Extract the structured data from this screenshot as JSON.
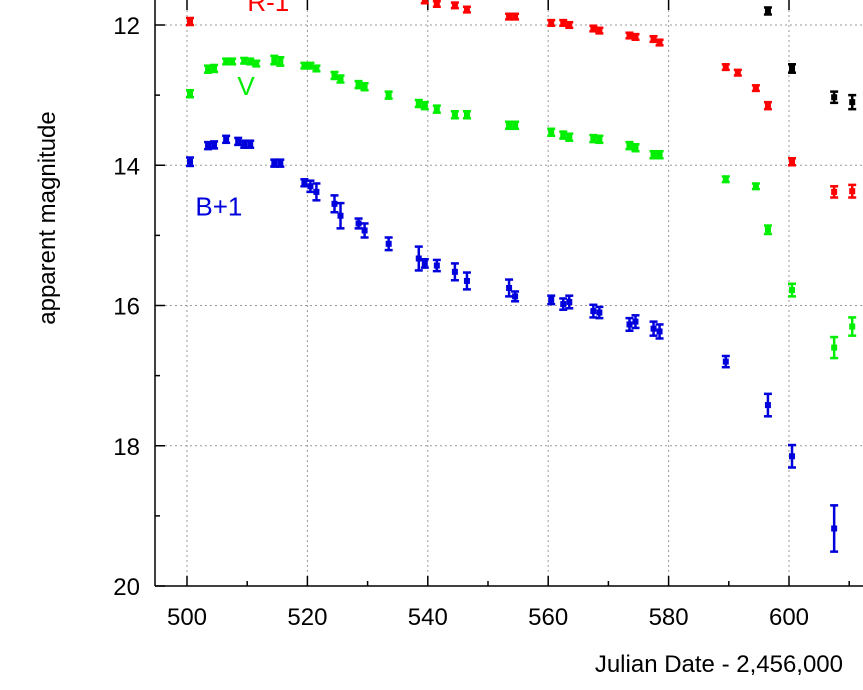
{
  "chart_data": {
    "type": "scatter",
    "title": "",
    "xlabel": "Julian Date - 2,456,000",
    "ylabel": "apparent magnitude",
    "xlim": [
      495,
      612
    ],
    "ylim": [
      20,
      11.7
    ],
    "y_inverted": true,
    "grid": true,
    "x_ticks": [
      "500",
      "520",
      "540",
      "560",
      "580",
      "600"
    ],
    "y_ticks": [
      "12",
      "14",
      "16",
      "18",
      "20"
    ],
    "series": [
      {
        "name": "R-1",
        "color": "#ff0000",
        "points": [
          {
            "x": 500.5,
            "y": 11.95,
            "e": 0.05
          },
          {
            "x": 539.5,
            "y": 11.65,
            "e": 0.04
          },
          {
            "x": 541.5,
            "y": 11.7,
            "e": 0.04
          },
          {
            "x": 544.5,
            "y": 11.72,
            "e": 0.04
          },
          {
            "x": 546.5,
            "y": 11.78,
            "e": 0.04
          },
          {
            "x": 553.5,
            "y": 11.88,
            "e": 0.04
          },
          {
            "x": 554.5,
            "y": 11.88,
            "e": 0.04
          },
          {
            "x": 560.5,
            "y": 11.97,
            "e": 0.04
          },
          {
            "x": 562.5,
            "y": 11.97,
            "e": 0.04
          },
          {
            "x": 563.5,
            "y": 12.0,
            "e": 0.04
          },
          {
            "x": 567.5,
            "y": 12.05,
            "e": 0.04
          },
          {
            "x": 568.5,
            "y": 12.08,
            "e": 0.04
          },
          {
            "x": 573.5,
            "y": 12.15,
            "e": 0.04
          },
          {
            "x": 574.5,
            "y": 12.17,
            "e": 0.04
          },
          {
            "x": 577.5,
            "y": 12.2,
            "e": 0.04
          },
          {
            "x": 578.5,
            "y": 12.25,
            "e": 0.04
          },
          {
            "x": 589.5,
            "y": 12.6,
            "e": 0.04
          },
          {
            "x": 591.5,
            "y": 12.68,
            "e": 0.04
          },
          {
            "x": 594.5,
            "y": 12.9,
            "e": 0.04
          },
          {
            "x": 596.5,
            "y": 13.15,
            "e": 0.05
          },
          {
            "x": 600.5,
            "y": 13.95,
            "e": 0.05
          },
          {
            "x": 607.5,
            "y": 14.38,
            "e": 0.08
          },
          {
            "x": 610.5,
            "y": 14.37,
            "e": 0.09
          }
        ]
      },
      {
        "name": "V",
        "color": "#00ee00",
        "points": [
          {
            "x": 500.5,
            "y": 12.98,
            "e": 0.05
          },
          {
            "x": 503.5,
            "y": 12.63,
            "e": 0.05
          },
          {
            "x": 504.5,
            "y": 12.62,
            "e": 0.05
          },
          {
            "x": 506.5,
            "y": 12.52,
            "e": 0.04
          },
          {
            "x": 507.5,
            "y": 12.52,
            "e": 0.04
          },
          {
            "x": 509.5,
            "y": 12.51,
            "e": 0.04
          },
          {
            "x": 510.5,
            "y": 12.52,
            "e": 0.04
          },
          {
            "x": 511.5,
            "y": 12.55,
            "e": 0.04
          },
          {
            "x": 514.5,
            "y": 12.5,
            "e": 0.06
          },
          {
            "x": 515.5,
            "y": 12.52,
            "e": 0.06
          },
          {
            "x": 519.5,
            "y": 12.58,
            "e": 0.04
          },
          {
            "x": 520.5,
            "y": 12.58,
            "e": 0.04
          },
          {
            "x": 521.5,
            "y": 12.62,
            "e": 0.04
          },
          {
            "x": 524.5,
            "y": 12.72,
            "e": 0.05
          },
          {
            "x": 525.5,
            "y": 12.77,
            "e": 0.05
          },
          {
            "x": 528.5,
            "y": 12.85,
            "e": 0.05
          },
          {
            "x": 529.5,
            "y": 12.88,
            "e": 0.05
          },
          {
            "x": 533.5,
            "y": 13.0,
            "e": 0.05
          },
          {
            "x": 538.5,
            "y": 13.12,
            "e": 0.05
          },
          {
            "x": 539.5,
            "y": 13.15,
            "e": 0.05
          },
          {
            "x": 541.5,
            "y": 13.2,
            "e": 0.05
          },
          {
            "x": 544.5,
            "y": 13.28,
            "e": 0.05
          },
          {
            "x": 546.5,
            "y": 13.28,
            "e": 0.05
          },
          {
            "x": 553.5,
            "y": 13.43,
            "e": 0.05
          },
          {
            "x": 554.5,
            "y": 13.43,
            "e": 0.05
          },
          {
            "x": 560.5,
            "y": 13.53,
            "e": 0.05
          },
          {
            "x": 562.5,
            "y": 13.57,
            "e": 0.05
          },
          {
            "x": 563.5,
            "y": 13.6,
            "e": 0.05
          },
          {
            "x": 567.5,
            "y": 13.62,
            "e": 0.05
          },
          {
            "x": 568.5,
            "y": 13.63,
            "e": 0.05
          },
          {
            "x": 573.5,
            "y": 13.72,
            "e": 0.05
          },
          {
            "x": 574.5,
            "y": 13.75,
            "e": 0.05
          },
          {
            "x": 577.5,
            "y": 13.85,
            "e": 0.05
          },
          {
            "x": 578.5,
            "y": 13.85,
            "e": 0.05
          },
          {
            "x": 589.5,
            "y": 14.2,
            "e": 0.04
          },
          {
            "x": 594.5,
            "y": 14.3,
            "e": 0.04
          },
          {
            "x": 596.5,
            "y": 14.92,
            "e": 0.06
          },
          {
            "x": 600.5,
            "y": 15.78,
            "e": 0.09
          },
          {
            "x": 607.5,
            "y": 16.6,
            "e": 0.15
          },
          {
            "x": 610.5,
            "y": 16.3,
            "e": 0.13
          }
        ]
      },
      {
        "name": "B+1",
        "color": "#0000dd",
        "points": [
          {
            "x": 500.5,
            "y": 13.95,
            "e": 0.06
          },
          {
            "x": 503.5,
            "y": 13.72,
            "e": 0.05
          },
          {
            "x": 504.5,
            "y": 13.71,
            "e": 0.05
          },
          {
            "x": 506.5,
            "y": 13.63,
            "e": 0.05
          },
          {
            "x": 508.5,
            "y": 13.66,
            "e": 0.05
          },
          {
            "x": 509.5,
            "y": 13.7,
            "e": 0.05
          },
          {
            "x": 510.5,
            "y": 13.7,
            "e": 0.05
          },
          {
            "x": 514.5,
            "y": 13.97,
            "e": 0.05
          },
          {
            "x": 515.5,
            "y": 13.97,
            "e": 0.05
          },
          {
            "x": 519.5,
            "y": 14.25,
            "e": 0.05
          },
          {
            "x": 520.5,
            "y": 14.3,
            "e": 0.08
          },
          {
            "x": 521.5,
            "y": 14.38,
            "e": 0.12
          },
          {
            "x": 524.5,
            "y": 14.55,
            "e": 0.12
          },
          {
            "x": 525.5,
            "y": 14.72,
            "e": 0.18
          },
          {
            "x": 528.5,
            "y": 14.83,
            "e": 0.07
          },
          {
            "x": 529.5,
            "y": 14.93,
            "e": 0.1
          },
          {
            "x": 533.5,
            "y": 15.12,
            "e": 0.09
          },
          {
            "x": 538.5,
            "y": 15.33,
            "e": 0.17
          },
          {
            "x": 539.5,
            "y": 15.4,
            "e": 0.06
          },
          {
            "x": 541.5,
            "y": 15.43,
            "e": 0.08
          },
          {
            "x": 544.5,
            "y": 15.52,
            "e": 0.12
          },
          {
            "x": 546.5,
            "y": 15.65,
            "e": 0.12
          },
          {
            "x": 553.5,
            "y": 15.75,
            "e": 0.12
          },
          {
            "x": 554.5,
            "y": 15.87,
            "e": 0.07
          },
          {
            "x": 560.5,
            "y": 15.92,
            "e": 0.06
          },
          {
            "x": 562.5,
            "y": 15.98,
            "e": 0.08
          },
          {
            "x": 563.5,
            "y": 15.95,
            "e": 0.09
          },
          {
            "x": 567.5,
            "y": 16.08,
            "e": 0.09
          },
          {
            "x": 568.5,
            "y": 16.1,
            "e": 0.08
          },
          {
            "x": 573.5,
            "y": 16.27,
            "e": 0.09
          },
          {
            "x": 574.5,
            "y": 16.23,
            "e": 0.09
          },
          {
            "x": 577.5,
            "y": 16.33,
            "e": 0.1
          },
          {
            "x": 578.5,
            "y": 16.37,
            "e": 0.1
          },
          {
            "x": 589.5,
            "y": 16.8,
            "e": 0.08
          },
          {
            "x": 596.5,
            "y": 17.42,
            "e": 0.16
          },
          {
            "x": 600.5,
            "y": 18.15,
            "e": 0.16
          },
          {
            "x": 607.5,
            "y": 19.18,
            "e": 0.33
          }
        ]
      },
      {
        "name": "",
        "color": "#000000",
        "points": [
          {
            "x": 596.5,
            "y": 11.8,
            "e": 0.05
          },
          {
            "x": 600.5,
            "y": 12.62,
            "e": 0.06
          },
          {
            "x": 607.5,
            "y": 13.03,
            "e": 0.08
          },
          {
            "x": 610.5,
            "y": 13.1,
            "e": 0.1
          }
        ]
      }
    ],
    "annotations": [
      {
        "text": "R-1",
        "color": "#ff0000",
        "x": 513.5,
        "y": 11.8
      },
      {
        "text": "V",
        "color": "#00ee00",
        "x": 509.8,
        "y": 13.0
      },
      {
        "text": "B+1",
        "color": "#0000dd",
        "x": 505.3,
        "y": 14.72
      }
    ]
  }
}
